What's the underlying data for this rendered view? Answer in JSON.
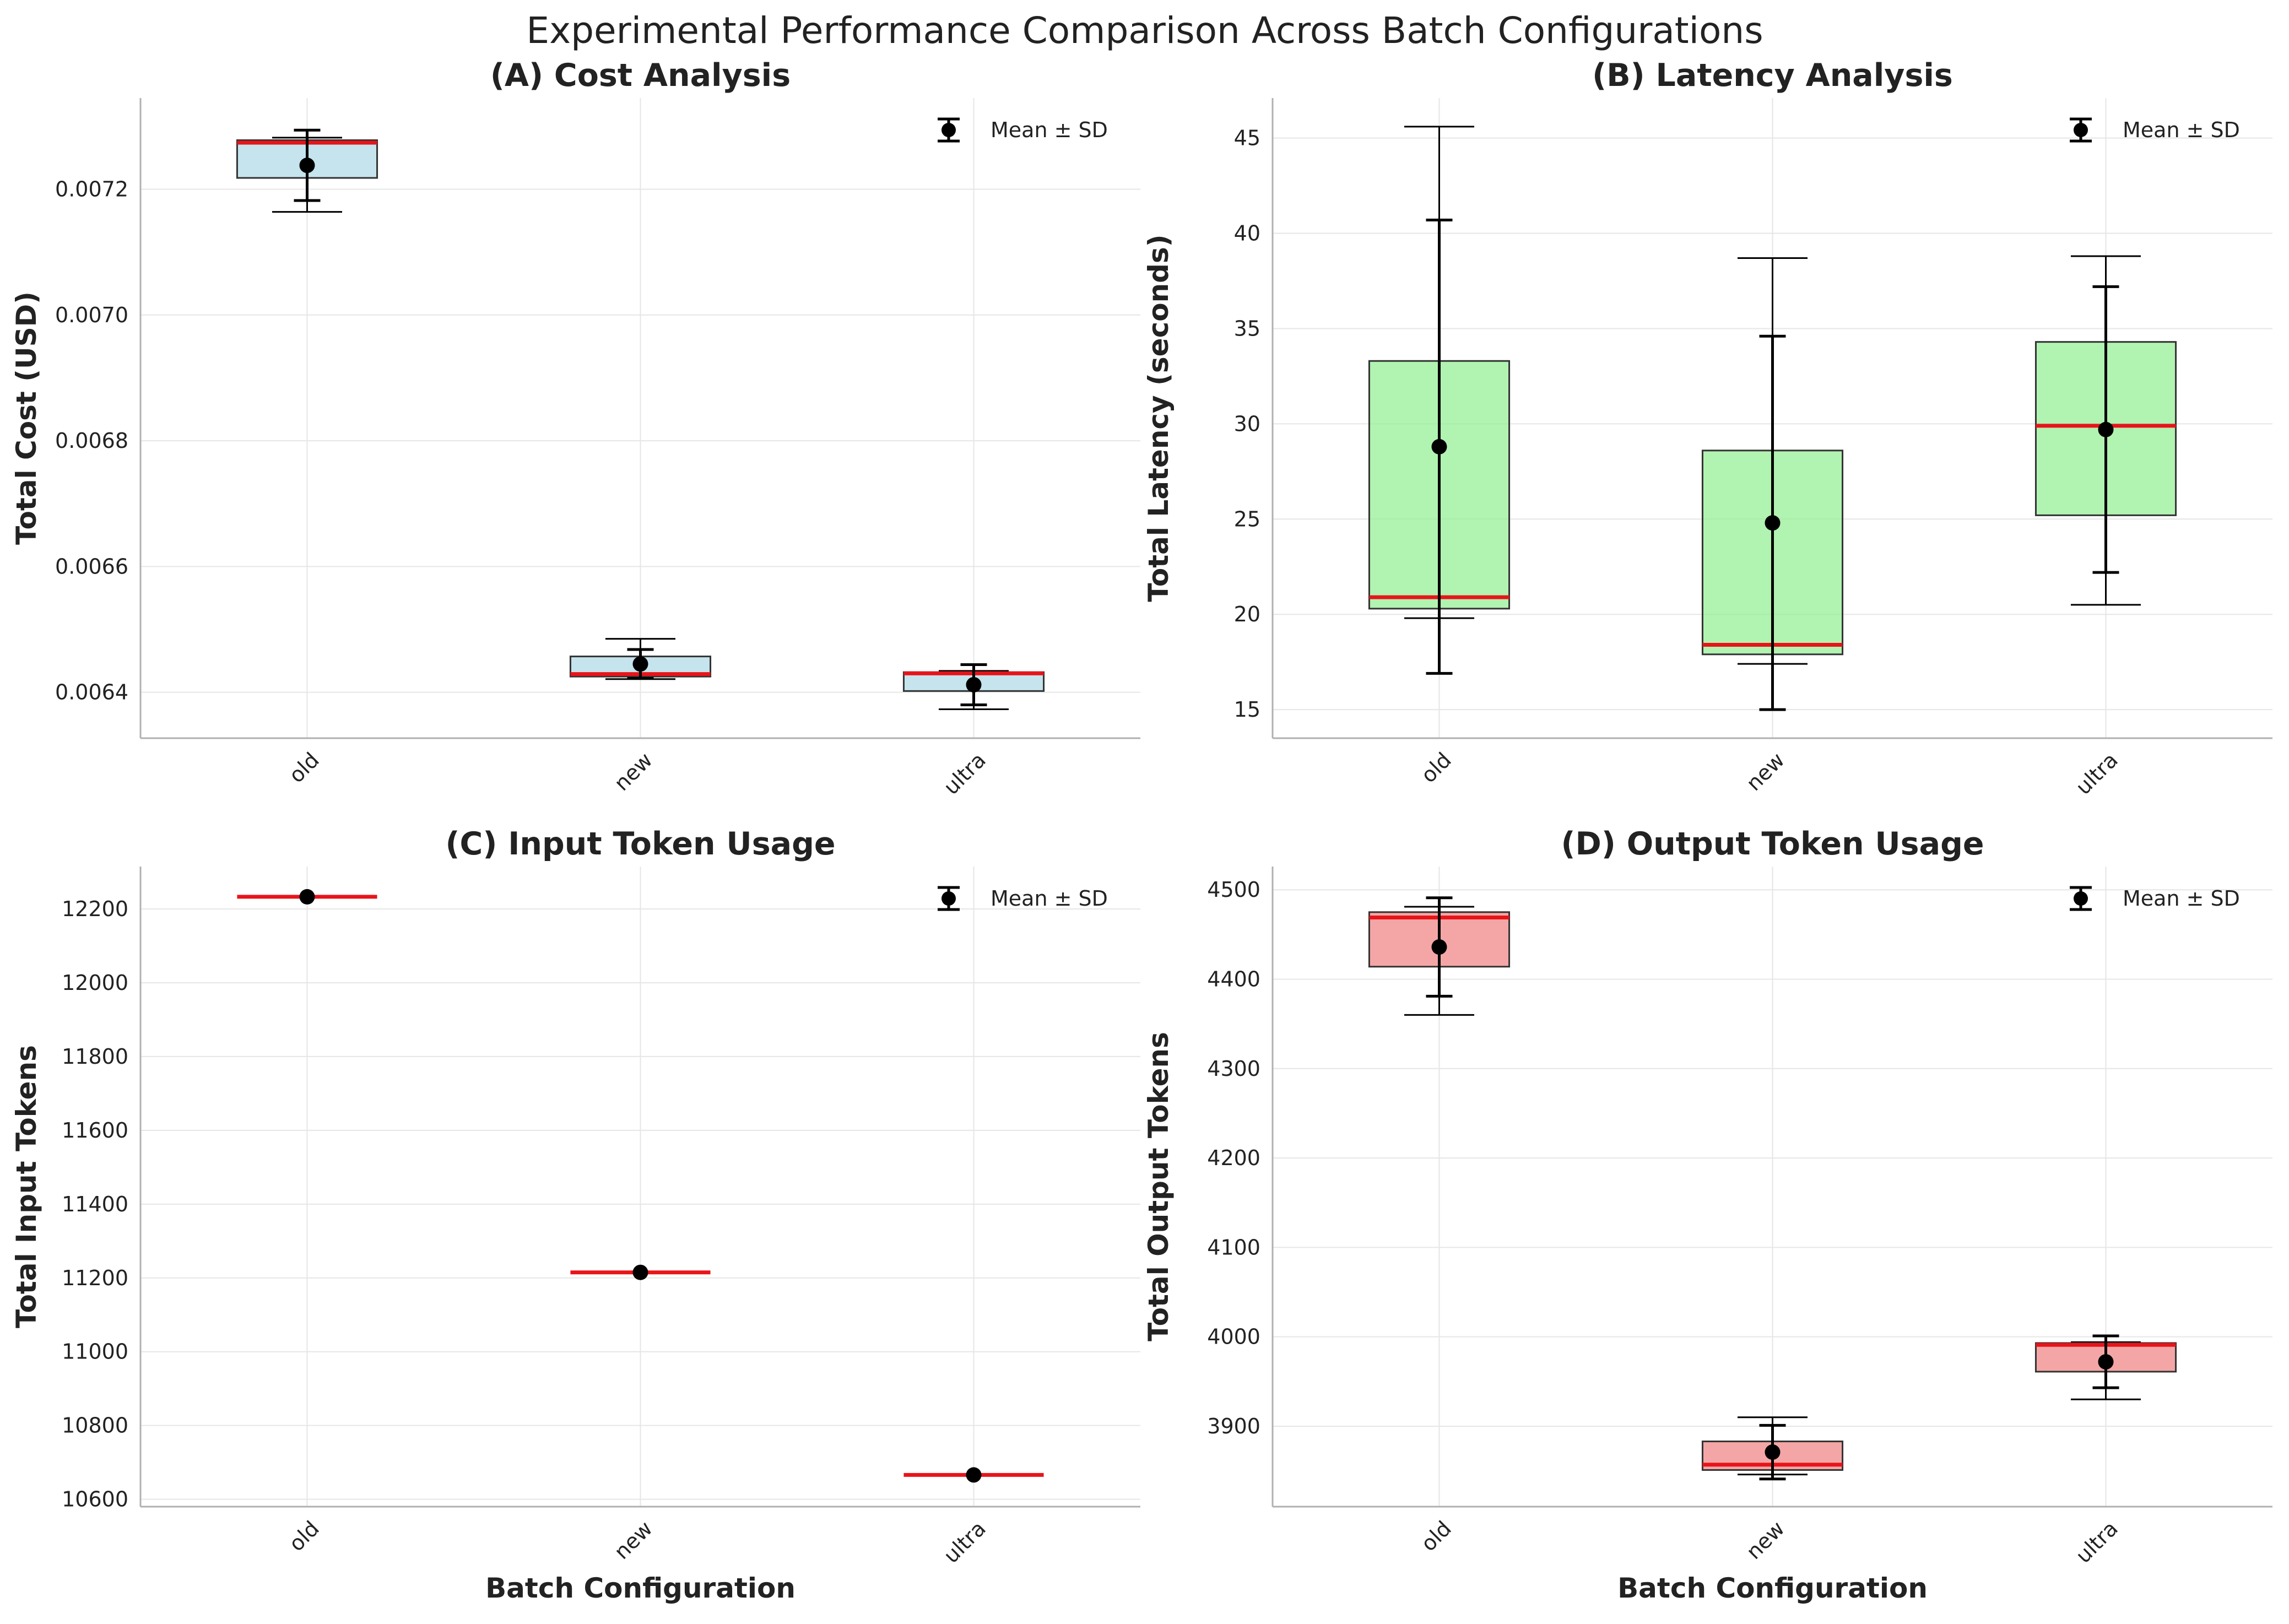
{
  "figure": {
    "title": "Experimental Performance Comparison Across Batch Configurations"
  },
  "chart_data": [
    {
      "type": "box",
      "title": "(A) Cost Analysis",
      "xlabel": "",
      "ylabel": "Total Cost (USD)",
      "categories": [
        "old",
        "new",
        "ultra"
      ],
      "ylim": [
        0.006327,
        0.007345
      ],
      "yticks": [
        0.0064,
        0.0066,
        0.0068,
        0.007,
        0.0072
      ],
      "ytick_labels": [
        "0.0064",
        "0.0066",
        "0.0068",
        "0.0070",
        "0.0072"
      ],
      "box_color": "#add8e6",
      "grid": true,
      "legend": {
        "label": "Mean ± SD",
        "placement": "top-right"
      },
      "boxes": [
        {
          "whisker_low": 0.007164,
          "q1": 0.007218,
          "median": 0.007274,
          "q3": 0.007278,
          "whisker_high": 0.007282
        },
        {
          "whisker_low": 0.006421,
          "q1": 0.006425,
          "median": 0.006429,
          "q3": 0.006457,
          "whisker_high": 0.006485
        },
        {
          "whisker_low": 0.006373,
          "q1": 0.006402,
          "median": 0.00643,
          "q3": 0.006432,
          "whisker_high": 0.006434
        }
      ],
      "means": [
        0.007238,
        0.006445,
        0.006412
      ],
      "sd": [
        5.6e-05,
        2.3e-05,
        3.2e-05
      ]
    },
    {
      "type": "box",
      "title": "(B) Latency Analysis",
      "xlabel": "",
      "ylabel": "Total Latency (seconds)",
      "categories": [
        "old",
        "new",
        "ultra"
      ],
      "ylim": [
        13.5,
        47.1
      ],
      "yticks": [
        15,
        20,
        25,
        30,
        35,
        40,
        45
      ],
      "ytick_labels": [
        "15",
        "20",
        "25",
        "30",
        "35",
        "40",
        "45"
      ],
      "box_color": "#90ee90",
      "grid": true,
      "legend": {
        "label": "Mean ± SD",
        "placement": "top-right"
      },
      "boxes": [
        {
          "whisker_low": 19.8,
          "q1": 20.3,
          "median": 20.9,
          "q3": 33.3,
          "whisker_high": 45.6
        },
        {
          "whisker_low": 17.4,
          "q1": 17.9,
          "median": 18.4,
          "q3": 28.6,
          "whisker_high": 38.7
        },
        {
          "whisker_low": 20.5,
          "q1": 25.2,
          "median": 29.9,
          "q3": 34.3,
          "whisker_high": 38.8
        }
      ],
      "means": [
        28.8,
        24.8,
        29.7
      ],
      "sd": [
        11.9,
        9.8,
        7.5
      ]
    },
    {
      "type": "box",
      "title": "(C) Input Token Usage",
      "xlabel": "Batch Configuration",
      "ylabel": "Total Input Tokens",
      "categories": [
        "old",
        "new",
        "ultra"
      ],
      "ylim": [
        10580,
        12315
      ],
      "yticks": [
        10600,
        10800,
        11000,
        11200,
        11400,
        11600,
        11800,
        12000,
        12200
      ],
      "ytick_labels": [
        "10600",
        "10800",
        "11000",
        "11200",
        "11400",
        "11600",
        "11800",
        "12000",
        "12200"
      ],
      "box_color": "#ffffff",
      "grid": true,
      "legend": {
        "label": "Mean ± SD",
        "placement": "top-right"
      },
      "boxes": [
        {
          "whisker_low": 12233,
          "q1": 12233,
          "median": 12233,
          "q3": 12233,
          "whisker_high": 12233
        },
        {
          "whisker_low": 11215,
          "q1": 11215,
          "median": 11215,
          "q3": 11215,
          "whisker_high": 11215
        },
        {
          "whisker_low": 10666,
          "q1": 10666,
          "median": 10666,
          "q3": 10666,
          "whisker_high": 10666
        }
      ],
      "means": [
        12233,
        11215,
        10666
      ],
      "sd": [
        0,
        0,
        0
      ]
    },
    {
      "type": "box",
      "title": "(D) Output Token Usage",
      "xlabel": "Batch Configuration",
      "ylabel": "Total Output Tokens",
      "categories": [
        "old",
        "new",
        "ultra"
      ],
      "ylim": [
        3810,
        4526
      ],
      "yticks": [
        3900,
        4000,
        4100,
        4200,
        4300,
        4400,
        4500
      ],
      "ytick_labels": [
        "3900",
        "4000",
        "4100",
        "4200",
        "4300",
        "4400",
        "4500"
      ],
      "box_color": "#f08080",
      "grid": true,
      "legend": {
        "label": "Mean ± SD",
        "placement": "top-right"
      },
      "boxes": [
        {
          "whisker_low": 4360,
          "q1": 4414,
          "median": 4469,
          "q3": 4475,
          "whisker_high": 4481
        },
        {
          "whisker_low": 3846,
          "q1": 3851,
          "median": 3857,
          "q3": 3883,
          "whisker_high": 3910
        },
        {
          "whisker_low": 3930,
          "q1": 3961,
          "median": 3991,
          "q3": 3993,
          "whisker_high": 3994
        }
      ],
      "means": [
        4436,
        3871,
        3972
      ],
      "sd": [
        55,
        30,
        29
      ]
    }
  ]
}
